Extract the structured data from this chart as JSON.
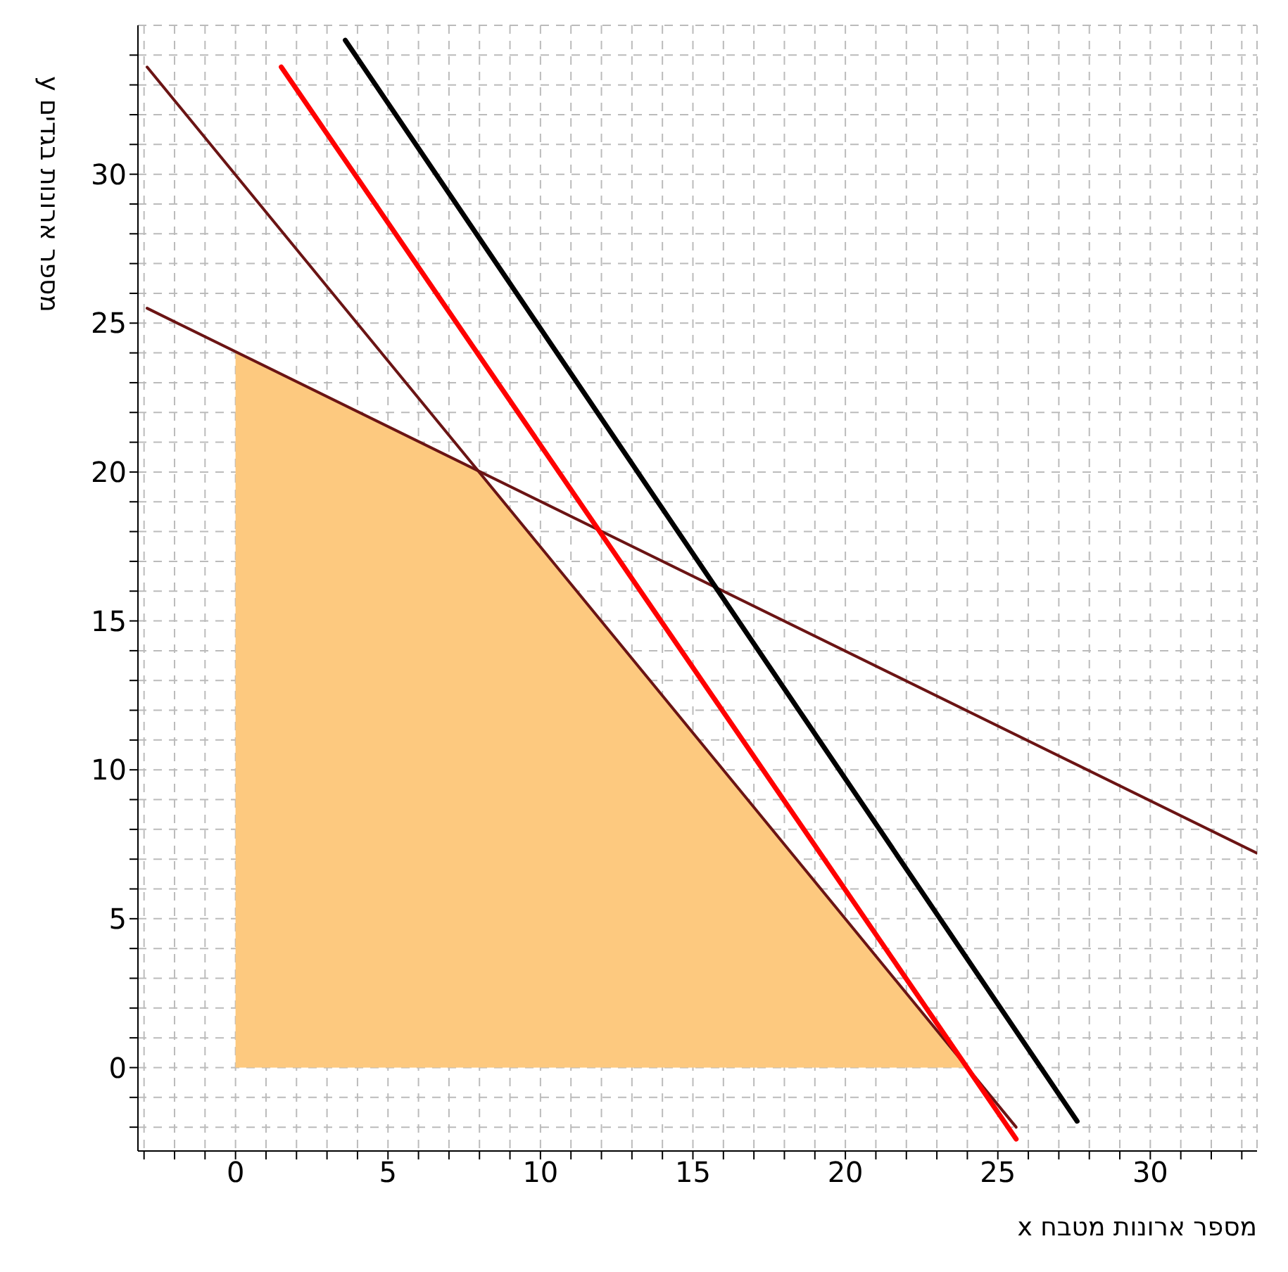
{
  "chart_data": {
    "type": "line",
    "xlabel": "x מספר ארונות מטבח",
    "ylabel": "y מספר ארונות בגדים",
    "xlim": [
      -3.2,
      33.5
    ],
    "ylim": [
      -2.8,
      35
    ],
    "xticks": [
      {
        "value": -3,
        "label": null
      },
      {
        "value": -2,
        "label": null
      },
      {
        "value": -1,
        "label": null
      },
      0,
      {
        "value": 1,
        "label": null
      },
      {
        "value": 2,
        "label": null
      },
      {
        "value": 3,
        "label": null
      },
      {
        "value": 4,
        "label": null
      },
      5,
      {
        "value": 6,
        "label": null
      },
      {
        "value": 7,
        "label": null
      },
      {
        "value": 8,
        "label": null
      },
      {
        "value": 9,
        "label": null
      },
      10,
      {
        "value": 11,
        "label": null
      },
      {
        "value": 12,
        "label": null
      },
      {
        "value": 13,
        "label": null
      },
      {
        "value": 14,
        "label": null
      },
      15,
      {
        "value": 16,
        "label": null
      },
      {
        "value": 17,
        "label": null
      },
      {
        "value": 18,
        "label": null
      },
      {
        "value": 19,
        "label": null
      },
      20,
      {
        "value": 21,
        "label": null
      },
      {
        "value": 22,
        "label": null
      },
      {
        "value": 23,
        "label": null
      },
      {
        "value": 24,
        "label": null
      },
      25,
      {
        "value": 26,
        "label": null
      },
      {
        "value": 27,
        "label": null
      },
      {
        "value": 28,
        "label": null
      },
      {
        "value": 29,
        "label": null
      },
      30,
      {
        "value": 31,
        "label": null
      },
      {
        "value": 32,
        "label": null
      },
      {
        "value": 33,
        "label": null
      }
    ],
    "yticks": [
      {
        "value": -2,
        "label": null
      },
      {
        "value": -1,
        "label": null
      },
      0,
      {
        "value": 1,
        "label": null
      },
      {
        "value": 2,
        "label": null
      },
      {
        "value": 3,
        "label": null
      },
      {
        "value": 4,
        "label": null
      },
      5,
      {
        "value": 6,
        "label": null
      },
      {
        "value": 7,
        "label": null
      },
      {
        "value": 8,
        "label": null
      },
      {
        "value": 9,
        "label": null
      },
      10,
      {
        "value": 11,
        "label": null
      },
      {
        "value": 12,
        "label": null
      },
      {
        "value": 13,
        "label": null
      },
      {
        "value": 14,
        "label": null
      },
      15,
      {
        "value": 16,
        "label": null
      },
      {
        "value": 17,
        "label": null
      },
      {
        "value": 18,
        "label": null
      },
      {
        "value": 19,
        "label": null
      },
      20,
      {
        "value": 21,
        "label": null
      },
      {
        "value": 22,
        "label": null
      },
      {
        "value": 23,
        "label": null
      },
      {
        "value": 24,
        "label": null
      },
      25,
      {
        "value": 26,
        "label": null
      },
      {
        "value": 27,
        "label": null
      },
      {
        "value": 28,
        "label": null
      },
      {
        "value": 29,
        "label": null
      },
      30,
      {
        "value": 31,
        "label": null
      },
      {
        "value": 32,
        "label": null
      },
      {
        "value": 33,
        "label": null
      },
      {
        "value": 34,
        "label": null
      }
    ],
    "grid": true,
    "marker": "none",
    "line_style": "solid",
    "series": [
      {
        "type": "area",
        "color": "#fdc97f",
        "x": [
          0,
          8,
          24
        ],
        "values": [
          24,
          20,
          0
        ]
      },
      {
        "color": "#6b1414",
        "x": [
          -2.9,
          33.5
        ],
        "values": [
          25.5,
          7.2
        ]
      },
      {
        "color": "#6b1414",
        "x": [
          -2.9,
          25.6
        ],
        "values": [
          33.6,
          -2
        ]
      },
      {
        "color": "#ff0000",
        "x": [
          1.5,
          25.6
        ],
        "values": [
          33.6,
          -2.4
        ]
      },
      {
        "color": "#000000",
        "x": [
          3.6,
          27.6
        ],
        "values": [
          34.5,
          -1.8
        ]
      }
    ]
  }
}
